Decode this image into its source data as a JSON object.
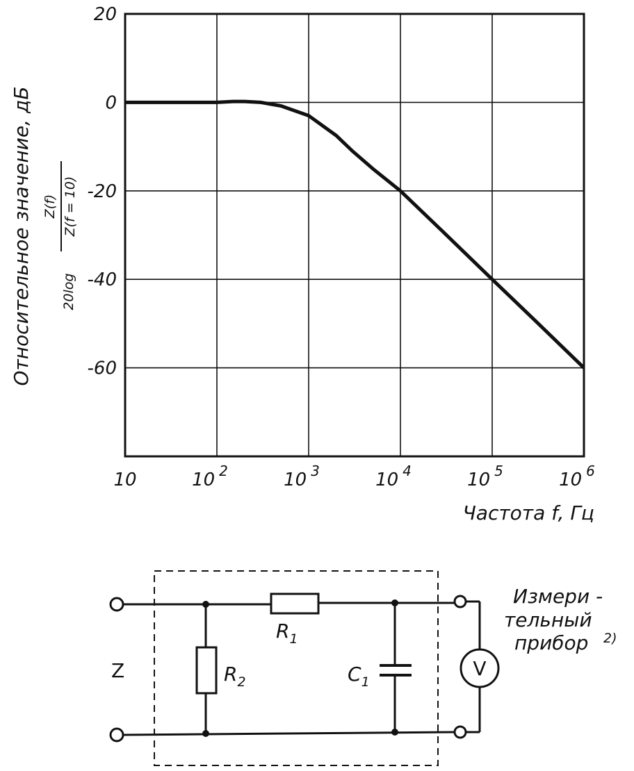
{
  "chart_data": {
    "type": "line",
    "ylabel": "Относительное значение, дБ",
    "ylabel_formula_prefix": "20log",
    "ylabel_formula_num": "Z(f)",
    "ylabel_formula_den": "Z(f = 10)",
    "xlabel": "Частота f, Гц",
    "xscale": "log",
    "xlim": [
      10,
      1000000
    ],
    "ylim": [
      -80,
      20
    ],
    "grid": true,
    "y_ticks": [
      {
        "value": 20,
        "label": "20"
      },
      {
        "value": 0,
        "label": "0"
      },
      {
        "value": -20,
        "label": "-20"
      },
      {
        "value": -40,
        "label": "-40"
      },
      {
        "value": -60,
        "label": "-60"
      }
    ],
    "x_ticks": [
      {
        "value": 10,
        "base": "10",
        "exp": ""
      },
      {
        "value": 100,
        "base": "10",
        "exp": "2"
      },
      {
        "value": 1000,
        "base": "10",
        "exp": "3"
      },
      {
        "value": 10000,
        "base": "10",
        "exp": "4"
      },
      {
        "value": 100000,
        "base": "10",
        "exp": "5"
      },
      {
        "value": 1000000,
        "base": "10",
        "exp": "6"
      }
    ],
    "series": [
      {
        "x": [
          10,
          30,
          100,
          150,
          200,
          300,
          500,
          1000,
          2000,
          3000,
          5000,
          10000,
          30000,
          100000,
          300000,
          1000000
        ],
        "y": [
          0,
          0,
          0,
          0.2,
          0.2,
          0,
          -0.8,
          -3,
          -7.5,
          -11,
          -15,
          -20,
          -29.5,
          -40,
          -49.5,
          -60
        ]
      }
    ]
  },
  "circuit": {
    "input_label": "Z",
    "r1_label": "R",
    "r1_sub": "1",
    "r2_label": "R",
    "r2_sub": "2",
    "c1_label": "C",
    "c1_sub": "1",
    "meter_symbol": "V",
    "meter_label_line1": "Измери -",
    "meter_label_line2": "тельный",
    "meter_label_line3": "прибор",
    "meter_footnote": "2)"
  }
}
